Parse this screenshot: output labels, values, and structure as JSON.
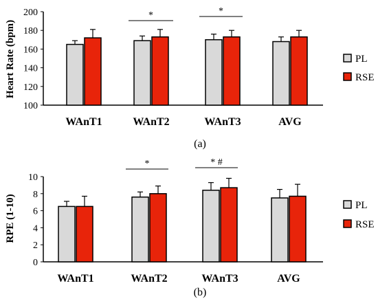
{
  "chart_data": [
    {
      "type": "bar",
      "panel_label": "(a)",
      "ylabel": "Heart Rate (bpm)",
      "ylim": [
        100,
        200
      ],
      "yticks": [
        100,
        120,
        140,
        160,
        180,
        200
      ],
      "categories": [
        "WAnT1",
        "WAnT2",
        "WAnT3",
        "AVG"
      ],
      "series": [
        {
          "name": "PL",
          "values": [
            165,
            169,
            170,
            168
          ],
          "errors": [
            4,
            5,
            6,
            5
          ],
          "color": "#d9d9d9"
        },
        {
          "name": "RSE",
          "values": [
            172,
            173,
            173,
            173
          ],
          "errors": [
            9,
            8,
            7,
            7
          ],
          "color": "#e8240a"
        }
      ],
      "annotations": [
        {
          "text": "*",
          "category": "WAnT2"
        },
        {
          "text": "*",
          "category": "WAnT3"
        }
      ],
      "legend": "right"
    },
    {
      "type": "bar",
      "panel_label": "(b)",
      "ylabel": "RPE (1-10)",
      "ylim": [
        0,
        10
      ],
      "yticks": [
        0,
        2,
        4,
        6,
        8,
        10
      ],
      "categories": [
        "WAnT1",
        "WAnT2",
        "WAnT3",
        "AVG"
      ],
      "series": [
        {
          "name": "PL",
          "values": [
            6.5,
            7.6,
            8.4,
            7.5
          ],
          "errors": [
            0.6,
            0.6,
            0.9,
            1.0
          ],
          "color": "#d9d9d9"
        },
        {
          "name": "RSE",
          "values": [
            6.5,
            8.0,
            8.7,
            7.7
          ],
          "errors": [
            1.2,
            0.9,
            1.1,
            1.4
          ],
          "color": "#e8240a"
        }
      ],
      "annotations": [
        {
          "text": "*",
          "category": "WAnT2"
        },
        {
          "text": "* #",
          "category": "WAnT3"
        }
      ],
      "legend": "right"
    }
  ],
  "colors": {
    "pl": "#d9d9d9",
    "rse": "#e8240a",
    "axis": "#000000"
  }
}
